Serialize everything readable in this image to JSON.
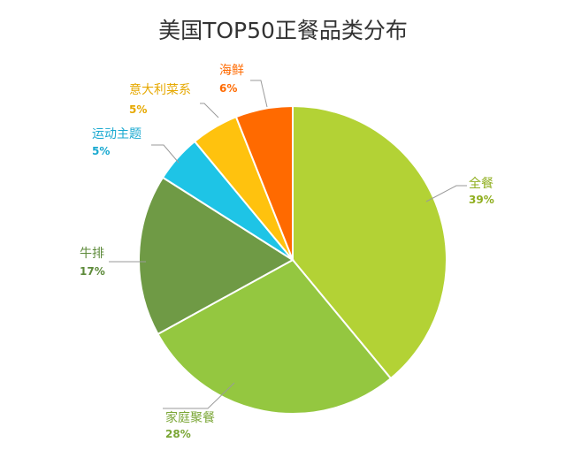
{
  "chart_data": {
    "type": "pie",
    "title": "美国TOP50正餐品类分布",
    "start_angle_deg": 0,
    "direction": "clockwise",
    "slices": [
      {
        "label": "全餐",
        "value": 39,
        "display": "39%",
        "color": "#b3d235",
        "label_color": "#8fae1e"
      },
      {
        "label": "家庭聚餐",
        "value": 28,
        "display": "28%",
        "color": "#94c740",
        "label_color": "#7aa635"
      },
      {
        "label": "牛排",
        "value": 17,
        "display": "17%",
        "color": "#6f9a45",
        "label_color": "#5d8a3a"
      },
      {
        "label": "运动主题",
        "value": 5,
        "display": "5%",
        "color": "#1ec4e6",
        "label_color": "#1aa9d0"
      },
      {
        "label": "意大利菜系",
        "value": 5,
        "display": "5%",
        "color": "#ffc20e",
        "label_color": "#e6a800"
      },
      {
        "label": "海鲜",
        "value": 6,
        "display": "6%",
        "color": "#ff6a00",
        "label_color": "#ff6a00"
      }
    ]
  }
}
